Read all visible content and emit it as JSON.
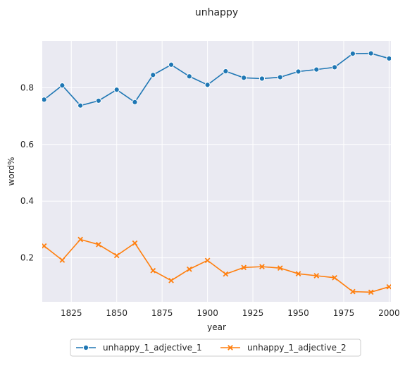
{
  "chart_data": {
    "type": "line",
    "title": "unhappy",
    "xlabel": "year",
    "ylabel": "word%",
    "xlim": [
      1809,
      2001
    ],
    "ylim": [
      0.045,
      0.965
    ],
    "xticks": [
      1825,
      1850,
      1875,
      1900,
      1925,
      1950,
      1975,
      2000
    ],
    "yticks": [
      0.2,
      0.4,
      0.6,
      0.8
    ],
    "grid": true,
    "legend_position": "bottom-center",
    "x": [
      1810,
      1820,
      1830,
      1840,
      1850,
      1860,
      1870,
      1880,
      1890,
      1900,
      1910,
      1920,
      1930,
      1940,
      1950,
      1960,
      1970,
      1980,
      1990,
      2000
    ],
    "series": [
      {
        "name": "unhappy_1_adjective_1",
        "color": "#1f77b4",
        "marker": "circle",
        "values": [
          0.758,
          0.808,
          0.737,
          0.754,
          0.793,
          0.749,
          0.845,
          0.881,
          0.84,
          0.81,
          0.858,
          0.835,
          0.832,
          0.837,
          0.857,
          0.864,
          0.872,
          0.92,
          0.921,
          0.903
        ]
      },
      {
        "name": "unhappy_1_adjective_2",
        "color": "#ff7f0e",
        "marker": "x",
        "values": [
          0.242,
          0.192,
          0.265,
          0.247,
          0.208,
          0.252,
          0.155,
          0.12,
          0.16,
          0.191,
          0.143,
          0.166,
          0.169,
          0.164,
          0.144,
          0.137,
          0.13,
          0.081,
          0.079,
          0.098
        ]
      }
    ]
  }
}
